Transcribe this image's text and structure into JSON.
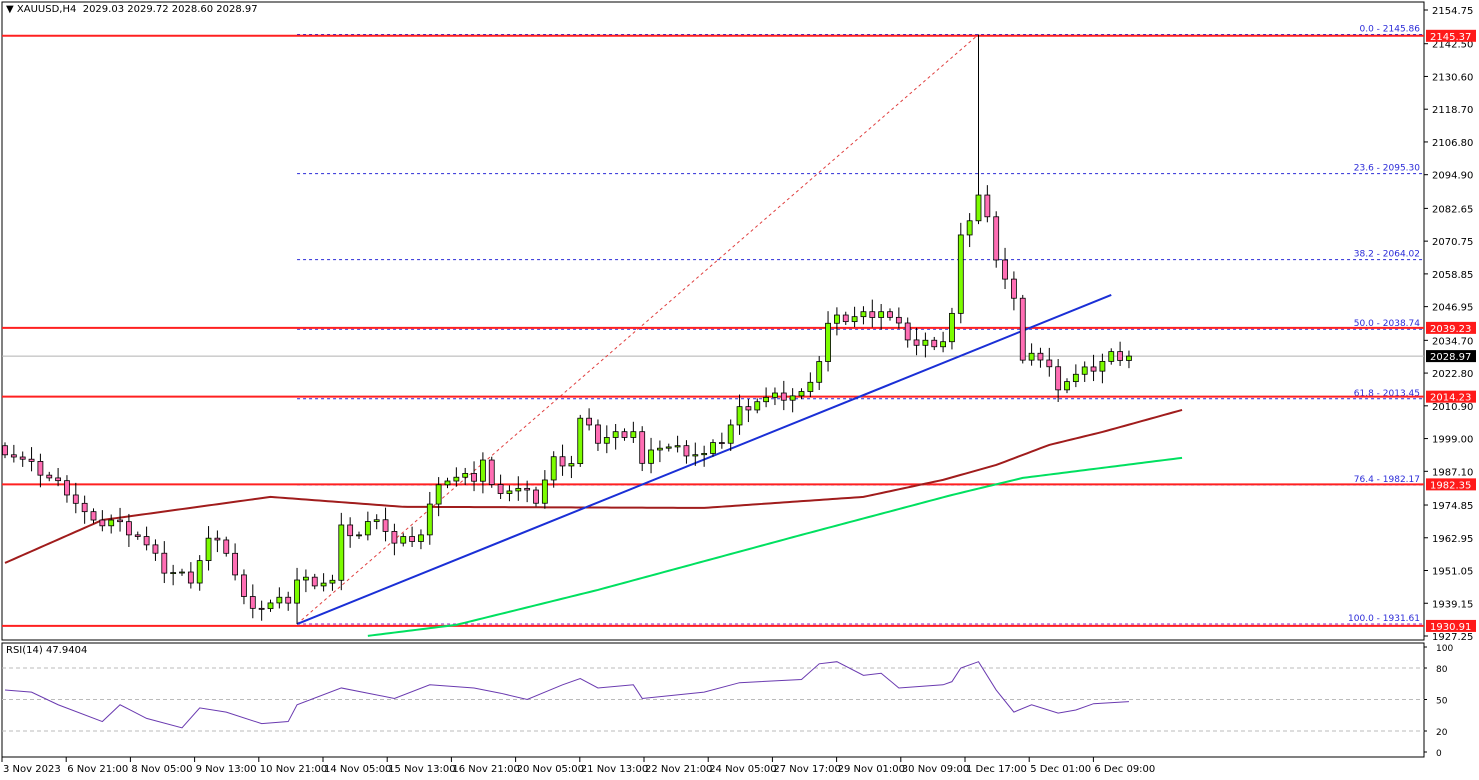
{
  "header": {
    "symbol": "XAUUSD,H4",
    "ohlc": "2029.03 2029.72 2028.60 2028.97",
    "menu_icon": "triangle-down-icon"
  },
  "rsi_header": "RSI(14) 47.9404",
  "colors": {
    "bull": "#7cfc00",
    "bear": "#ff6eb4",
    "hline": "#ff2020",
    "fib": "#2b2bd8",
    "trend": "#1a2fd6",
    "ma_slow": "#a01c1c",
    "ma_fast": "#00e060",
    "rsi": "#6a3ab0"
  },
  "time_labels": [
    "3 Nov 2023",
    "6 Nov 21:00",
    "8 Nov 05:00",
    "9 Nov 13:00",
    "10 Nov 21:00",
    "14 Nov 05:00",
    "15 Nov 13:00",
    "16 Nov 21:00",
    "20 Nov 05:00",
    "21 Nov 13:00",
    "22 Nov 21:00",
    "24 Nov 05:00",
    "27 Nov 17:00",
    "29 Nov 01:00",
    "30 Nov 09:00",
    "1 Dec 17:00",
    "5 Dec 01:00",
    "6 Dec 09:00"
  ],
  "chart_data": {
    "type": "candlestick",
    "symbol": "XAUUSD",
    "timeframe": "H4",
    "ylim": [
      1927.25,
      2154.75
    ],
    "bars": 128,
    "price_ticks": [
      "2154.75",
      "2142.50",
      "2130.60",
      "2118.70",
      "2106.80",
      "2094.90",
      "2082.65",
      "2070.75",
      "2058.85",
      "2046.95",
      "2034.70",
      "2022.80",
      "2010.90",
      "1999.00",
      "1987.10",
      "1974.85",
      "1962.95",
      "1951.05",
      "1939.15",
      "1927.25"
    ],
    "close_keypoints": [
      [
        0,
        1994.9
      ],
      [
        4,
        1986.9
      ],
      [
        7,
        1980.3
      ],
      [
        10,
        1967.6
      ],
      [
        12,
        1969.4
      ],
      [
        15,
        1964.0
      ],
      [
        18,
        1951.3
      ],
      [
        21,
        1948.3
      ],
      [
        23,
        1962.2
      ],
      [
        25,
        1958.5
      ],
      [
        27,
        1940.4
      ],
      [
        29,
        1937.8
      ],
      [
        32,
        1940.4
      ],
      [
        33,
        1947.6
      ],
      [
        37,
        1946.9
      ],
      [
        38,
        1965.8
      ],
      [
        40,
        1964.0
      ],
      [
        42,
        1971.3
      ],
      [
        44,
        1960.4
      ],
      [
        47,
        1964.0
      ],
      [
        49,
        1984.0
      ],
      [
        53,
        1984.7
      ],
      [
        54,
        1991.2
      ],
      [
        55,
        1981.1
      ],
      [
        58,
        1980.3
      ],
      [
        60,
        1976.7
      ],
      [
        62,
        1991.2
      ],
      [
        64,
        1990.5
      ],
      [
        65,
        2005.8
      ],
      [
        67,
        1998.5
      ],
      [
        71,
        2002.1
      ],
      [
        72,
        1989.4
      ],
      [
        74,
        1996.7
      ],
      [
        79,
        1993.0
      ],
      [
        81,
        1998.5
      ],
      [
        83,
        2009.4
      ],
      [
        85,
        2013.0
      ],
      [
        90,
        2014.9
      ],
      [
        92,
        2027.6
      ],
      [
        93,
        2040.3
      ],
      [
        94,
        2042.1
      ],
      [
        97,
        2043.9
      ],
      [
        99,
        2045.7
      ],
      [
        101,
        2039.2
      ],
      [
        103,
        2032.9
      ],
      [
        106,
        2034.8
      ],
      [
        107,
        2043.9
      ],
      [
        108,
        2071.2
      ],
      [
        110,
        2087.5
      ],
      [
        111,
        2078.4
      ],
      [
        112,
        2065.7
      ],
      [
        114,
        2049.4
      ],
      [
        115,
        2025.7
      ],
      [
        116,
        2031.2
      ],
      [
        118,
        2023.9
      ],
      [
        119,
        2018.5
      ],
      [
        120,
        2020.3
      ],
      [
        123,
        2024.7
      ],
      [
        125,
        2029.4
      ],
      [
        127,
        2028.97
      ]
    ],
    "wick_overrides": [
      {
        "bar": 110,
        "high": 2145.86
      },
      {
        "bar": 33,
        "low": 1931.61
      }
    ],
    "horizontal_levels": [
      {
        "price": 2145.37,
        "label": "2145.37"
      },
      {
        "price": 2039.23,
        "label": "2039.23"
      },
      {
        "price": 2014.23,
        "label": "2014.23"
      },
      {
        "price": 1982.35,
        "label": "1982.35"
      },
      {
        "price": 1930.91,
        "label": "1930.91"
      }
    ],
    "current_price": {
      "price": 2028.97,
      "label": "2028.97"
    },
    "fibonacci": {
      "from": {
        "bar": 33,
        "price": 1931.61
      },
      "to": {
        "bar": 110,
        "price": 2145.86
      },
      "levels": [
        {
          "price": 2145.86,
          "label": "0.0 - 2145.86"
        },
        {
          "price": 2095.3,
          "label": "23.6 - 2095.30"
        },
        {
          "price": 2064.02,
          "label": "38.2 - 2064.02"
        },
        {
          "price": 2038.74,
          "label": "50.0 - 2038.74"
        },
        {
          "price": 2013.45,
          "label": "61.8 - 2013.45"
        },
        {
          "price": 1982.17,
          "label": "76.4 - 1982.17"
        },
        {
          "price": 1931.61,
          "label": "100.0 - 1931.61"
        }
      ]
    },
    "trendline": [
      {
        "bar": 33,
        "price": 1931.6
      },
      {
        "bar": 125,
        "price": 2051.2
      }
    ],
    "ma_slow": [
      [
        0,
        1953.8
      ],
      [
        11,
        1969.4
      ],
      [
        30,
        1977.8
      ],
      [
        45,
        1974.2
      ],
      [
        79,
        1973.8
      ],
      [
        97,
        1977.8
      ],
      [
        106,
        1984.0
      ],
      [
        112,
        1989.4
      ],
      [
        118,
        1996.7
      ],
      [
        124,
        2001.4
      ],
      [
        133,
        2009.4
      ]
    ],
    "ma_fast": [
      [
        41,
        1927.3
      ],
      [
        51,
        1931.3
      ],
      [
        67,
        1944.0
      ],
      [
        90,
        1964.0
      ],
      [
        107,
        1978.5
      ],
      [
        115,
        1984.7
      ],
      [
        133,
        1992.0
      ]
    ],
    "rsi": {
      "period": 14,
      "value": 47.9404,
      "ylim": [
        0,
        100
      ],
      "ticks": [
        "100",
        "80",
        "50",
        "20",
        "0"
      ],
      "levels": [
        80,
        50,
        20
      ],
      "points": [
        [
          0,
          59
        ],
        [
          3,
          57
        ],
        [
          6,
          45
        ],
        [
          11,
          29
        ],
        [
          13,
          45
        ],
        [
          16,
          32
        ],
        [
          20,
          23
        ],
        [
          22,
          42
        ],
        [
          25,
          38
        ],
        [
          29,
          27
        ],
        [
          32,
          29
        ],
        [
          33,
          45
        ],
        [
          38,
          61
        ],
        [
          44,
          51
        ],
        [
          48,
          64
        ],
        [
          53,
          61
        ],
        [
          56,
          56
        ],
        [
          59,
          50
        ],
        [
          63,
          64
        ],
        [
          65,
          70
        ],
        [
          67,
          61
        ],
        [
          71,
          64
        ],
        [
          72,
          51
        ],
        [
          79,
          57
        ],
        [
          83,
          66
        ],
        [
          90,
          69
        ],
        [
          92,
          84
        ],
        [
          94,
          86
        ],
        [
          97,
          73
        ],
        [
          99,
          75
        ],
        [
          101,
          61
        ],
        [
          106,
          64
        ],
        [
          107,
          67
        ],
        [
          108,
          80
        ],
        [
          110,
          86
        ],
        [
          112,
          59
        ],
        [
          114,
          38
        ],
        [
          116,
          45
        ],
        [
          119,
          37
        ],
        [
          121,
          40
        ],
        [
          123,
          46
        ],
        [
          127,
          47.94
        ]
      ]
    }
  }
}
